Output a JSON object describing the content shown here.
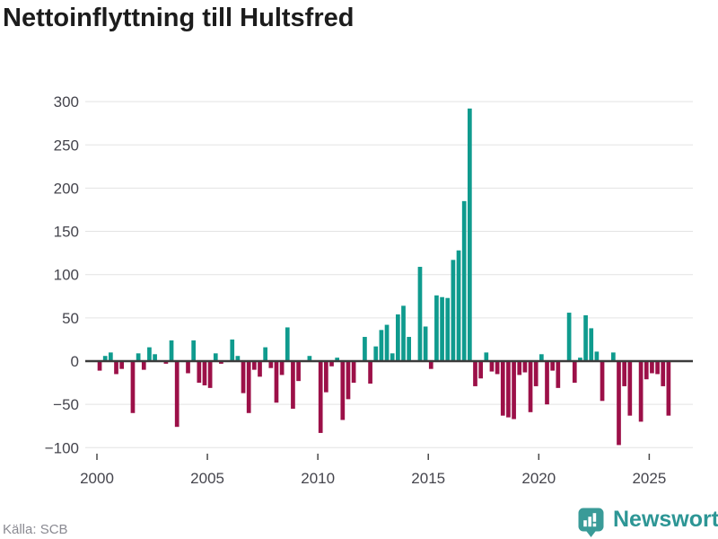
{
  "page": {
    "title": "Nettoinflyttning till Hultsfred"
  },
  "footer": {
    "source": "Källa: SCB",
    "brand_name": "Newsworthy"
  },
  "colors": {
    "positive_bar": "#0f9b8e",
    "negative_bar": "#9c1048",
    "grid_line": "#e3e3e3",
    "zero_line": "#3b3b3b",
    "axis_text": "#45454d",
    "title_text": "#1c1c1c",
    "source_text": "#8a8a92",
    "brand_teal": "#2d9695"
  },
  "chart_data": {
    "type": "bar",
    "title": "Nettoinflyttning till Hultsfred",
    "frequency": "quarterly",
    "x_start": "2000Q1",
    "x_end": "2025Q4",
    "x_ticks": [
      2000,
      2005,
      2010,
      2015,
      2020,
      2025
    ],
    "y_ticks": [
      300,
      250,
      200,
      150,
      100,
      50,
      0,
      -50,
      -100
    ],
    "ylim": [
      -110,
      310
    ],
    "grid": true,
    "values": [
      -11,
      6,
      10,
      -15,
      -9,
      0,
      -60,
      9,
      -10,
      16,
      8,
      0,
      -3,
      24,
      -76,
      0,
      -14,
      24,
      -25,
      -28,
      -31,
      9,
      -3,
      0,
      25,
      6,
      -37,
      -60,
      -10,
      -18,
      16,
      -8,
      -48,
      -16,
      39,
      -55,
      -23,
      0,
      6,
      0,
      -83,
      -36,
      -6,
      4,
      -68,
      -44,
      -25,
      0,
      28,
      -26,
      17,
      36,
      42,
      9,
      54,
      64,
      28,
      0,
      109,
      40,
      -9,
      76,
      74,
      73,
      117,
      128,
      185,
      292,
      -29,
      -20,
      10,
      -12,
      -15,
      -63,
      -65,
      -67,
      -16,
      -13,
      -59,
      -29,
      8,
      -50,
      -11,
      -31,
      0,
      56,
      -25,
      4,
      53,
      38,
      11,
      -46,
      0,
      10,
      -97,
      -29,
      -63,
      0,
      -70,
      -21,
      -14,
      -15,
      -29,
      -63
    ]
  }
}
